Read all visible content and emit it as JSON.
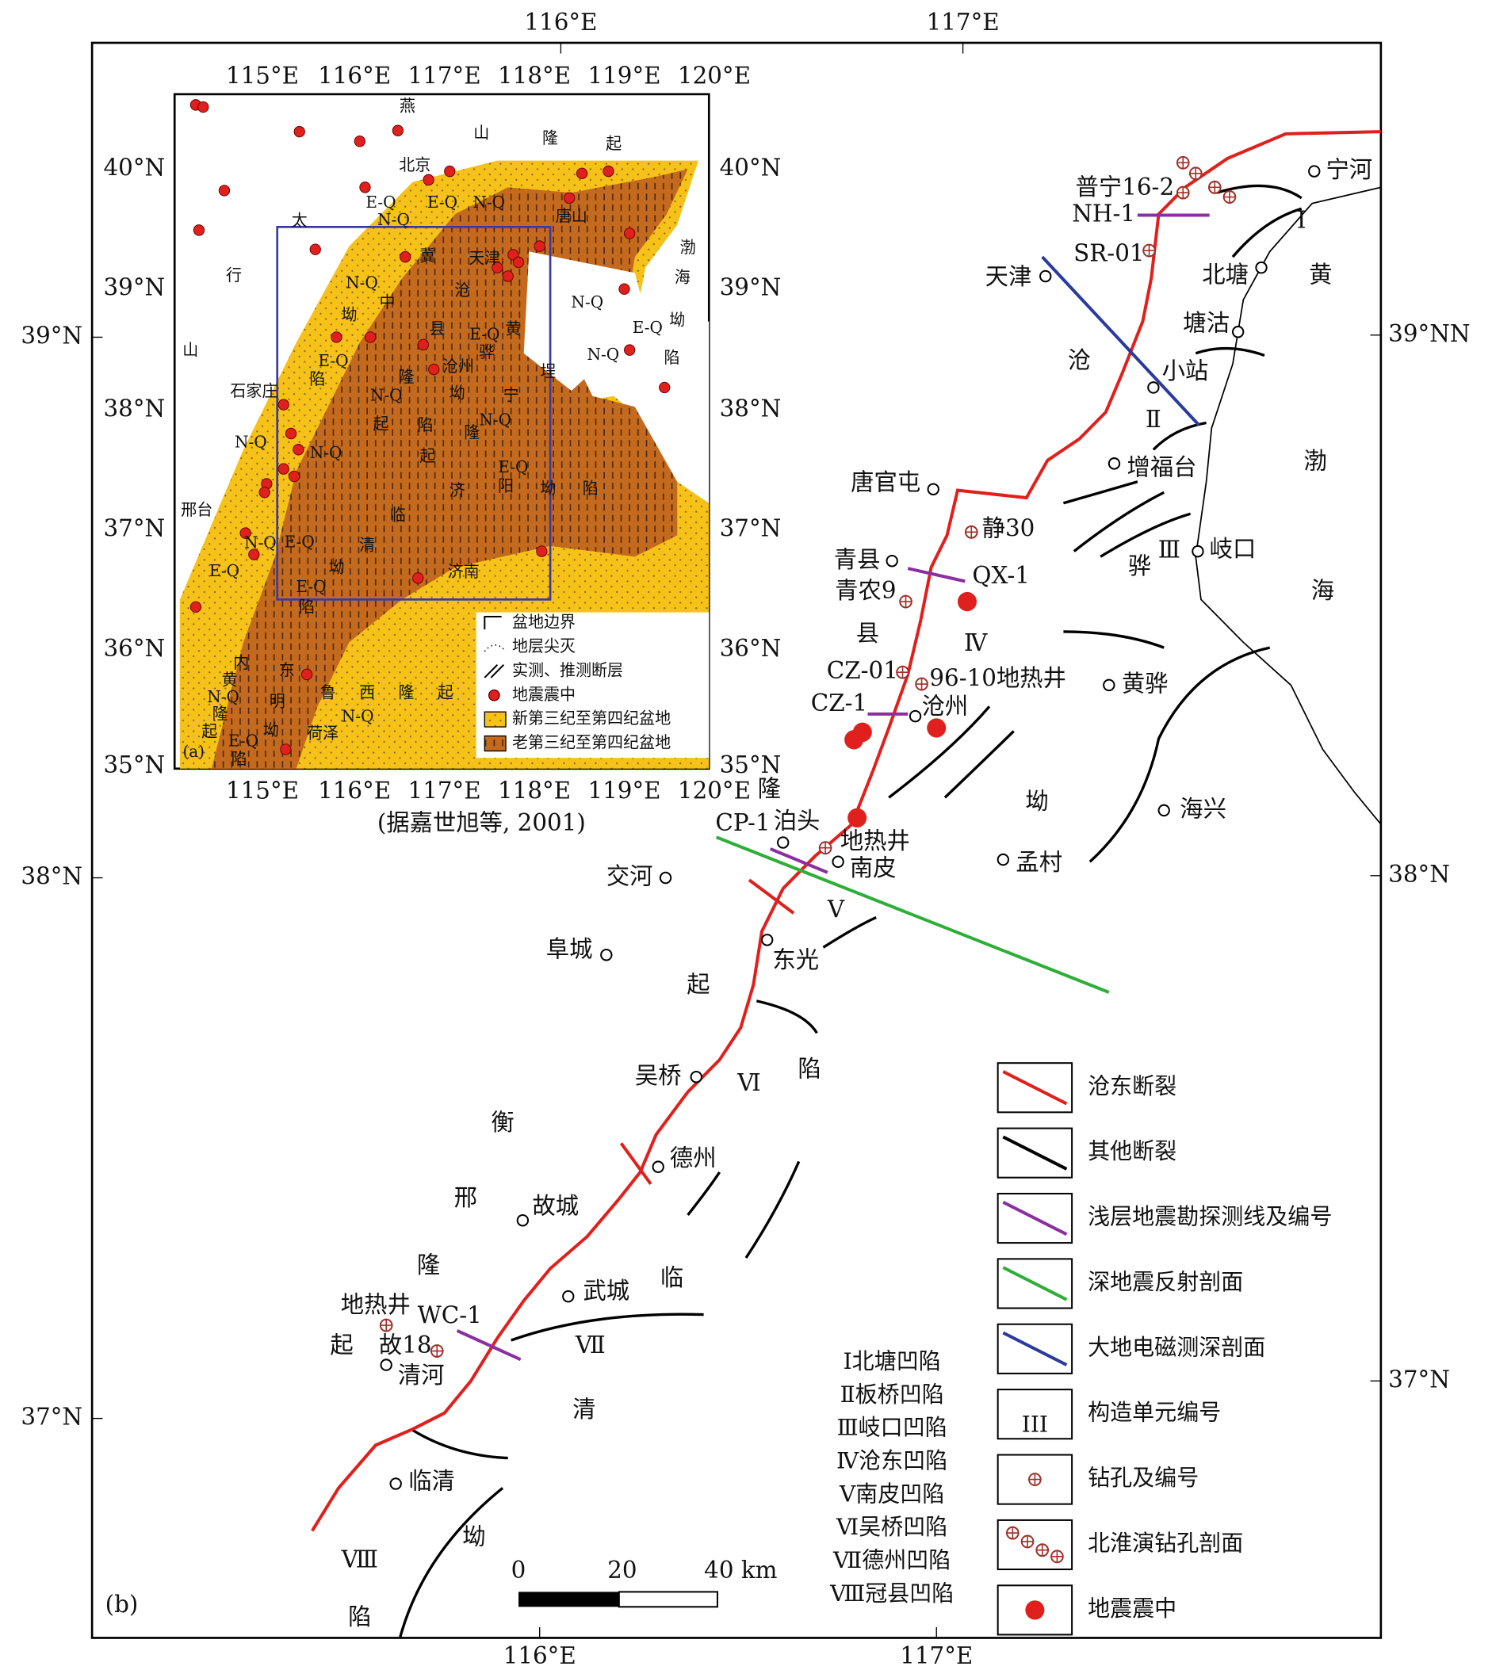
{
  "map": {
    "top_ticks": [
      "116°E",
      "117°E"
    ],
    "bottom_ticks": [
      "116°E",
      "117°E"
    ],
    "left_ticks": [
      "39°N",
      "38°N",
      "37°N"
    ],
    "right_ticks": [
      "39°NN",
      "38°N",
      "37°N"
    ],
    "labels": [
      "宁河",
      "普宁16-2",
      "NH-1",
      "Ⅰ",
      "SR-01",
      "天津",
      "北塘",
      "黄",
      "塘沽",
      "沧",
      "小站",
      "Ⅱ",
      "渤",
      "增福台",
      "唐官屯",
      "静30",
      "Ⅲ",
      "岐口",
      "骅",
      "青县",
      "QX-1",
      "海",
      "青农9",
      "县",
      "Ⅳ",
      "CZ-01",
      "96-10地热井",
      "黄骅",
      "CZ-1",
      "沧州",
      "坳",
      "海兴",
      "隆",
      "泊头",
      "CP-1",
      "地热井",
      "南皮",
      "孟村",
      "交河",
      "Ⅴ",
      "阜城",
      "东光",
      "起",
      "陷",
      "吴桥",
      "Ⅵ",
      "衡",
      "德州",
      "邢",
      "故城",
      "临",
      "隆",
      "武城",
      "地热井",
      "WC-1",
      "故18",
      "起",
      "Ⅶ",
      "清河",
      "清",
      "临清",
      "Ⅷ",
      "坳",
      "陷",
      "(b)"
    ],
    "scale": [
      "0",
      "20",
      "40 km"
    ],
    "units": [
      "Ⅰ北塘凹陷",
      "Ⅱ板桥凹陷",
      "Ⅲ岐口凹陷",
      "Ⅳ沧东凹陷",
      "Ⅴ南皮凹陷",
      "Ⅵ吴桥凹陷",
      "Ⅶ德州凹陷",
      "Ⅷ冠县凹陷"
    ],
    "legend": [
      "沧东断裂",
      "其他断裂",
      "浅层地震勘探测线及编号",
      "深地震反射剖面",
      "大地电磁测深剖面",
      "构造单元编号",
      "钻孔及编号",
      "北淮演钻孔剖面",
      "地震震中"
    ],
    "legend_unit_symbol": "III",
    "inset": {
      "top_ticks": [
        "115°E",
        "116°E",
        "117°E",
        "118°E",
        "119°E",
        "120°E"
      ],
      "bottom_ticks": [
        "115°E",
        "116°E",
        "117°E",
        "118°E",
        "119°E",
        "120°E"
      ],
      "left_ticks": [
        "40°N",
        "39°N",
        "38°N",
        "37°N",
        "36°N",
        "35°N"
      ],
      "right_ticks": [
        "40°N",
        "39°N",
        "38°N",
        "37°N",
        "36°N",
        "35°N"
      ],
      "labels": [
        "燕",
        "山",
        "隆",
        "起",
        "北京",
        "E-Q",
        "E-Q",
        "N-Q",
        "唐山",
        "太",
        "N-Q",
        "冀",
        "天津",
        "渤",
        "海",
        "行",
        "N-Q",
        "中",
        "沧",
        "N-Q",
        "坳",
        "E-Q",
        "山",
        "坳",
        "县",
        "E-Q",
        "黄",
        "E-Q",
        "骅",
        "N-Q",
        "陷",
        "埕",
        "陷",
        "隆",
        "沧州",
        "石家庄",
        "N-Q",
        "坳",
        "宁",
        "起",
        "陷",
        "N-Q",
        "N-Q",
        "隆",
        "N-Q",
        "起",
        "E-Q",
        "济",
        "阳",
        "坳",
        "陷",
        "邢台",
        "临",
        "N-Q",
        "E-Q",
        "清",
        "坳",
        "E-Q",
        "济南",
        "E-Q",
        "陷",
        "内",
        "东",
        "黄",
        "N-Q",
        "隆",
        "起",
        "明",
        "坳",
        "E-Q",
        "陷",
        "鲁",
        "西",
        "隆",
        "起",
        "N-Q",
        "荷泽",
        "(a)"
      ],
      "legend": [
        "盆地边界",
        "地层尖灭",
        "实测、推测断层",
        "地震震中",
        "新第三纪至第四纪盆地",
        "老第三纪至第四纪盆地"
      ],
      "source": "(据嘉世旭等, 2001)"
    }
  }
}
